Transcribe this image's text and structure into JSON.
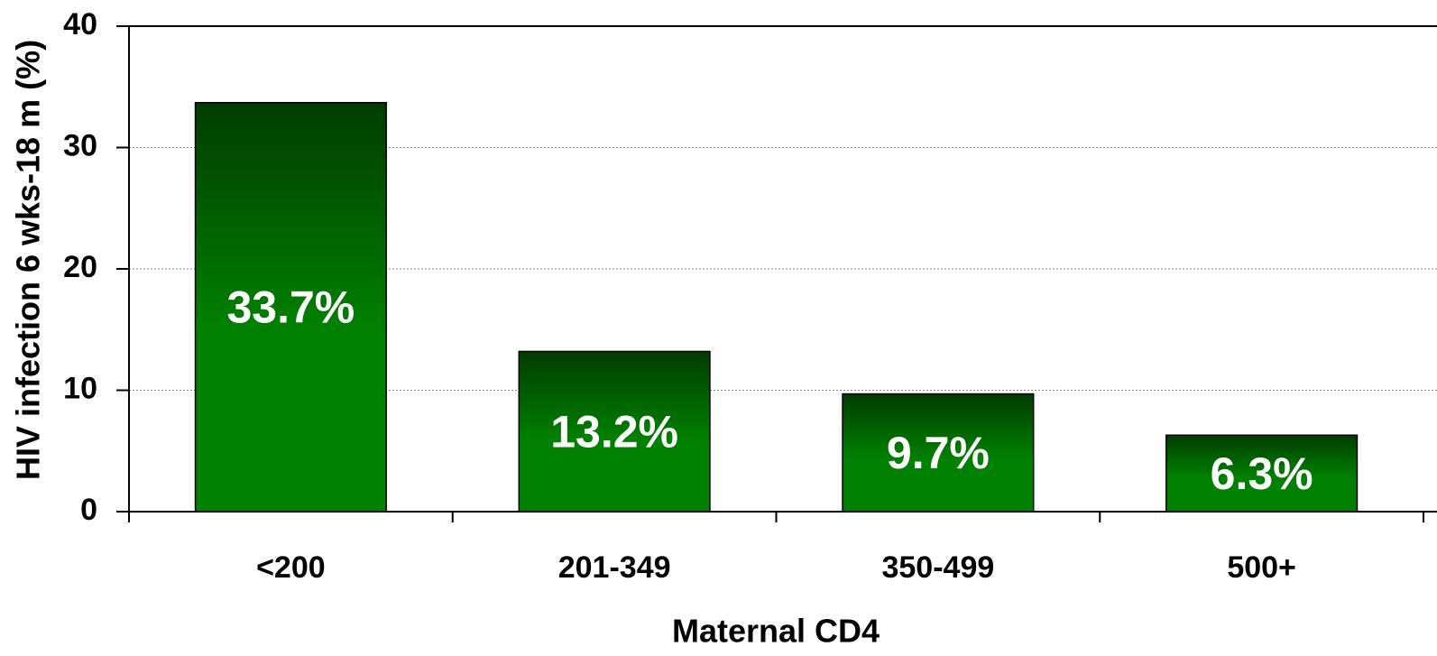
{
  "chart_data": {
    "type": "bar",
    "x_label": "Maternal CD4",
    "y_label": "HIV infection 6 wks-18 m (%)",
    "categories": [
      "<200",
      "201-349",
      "350-499",
      "500+"
    ],
    "values": [
      33.7,
      13.2,
      9.7,
      6.3
    ],
    "value_labels": [
      "33.7%",
      "13.2%",
      "9.7%",
      "6.3%"
    ],
    "color": "#008000",
    "ylim": [
      0,
      40
    ],
    "yticks": [
      0,
      10,
      20,
      30,
      40
    ],
    "grid": true
  }
}
